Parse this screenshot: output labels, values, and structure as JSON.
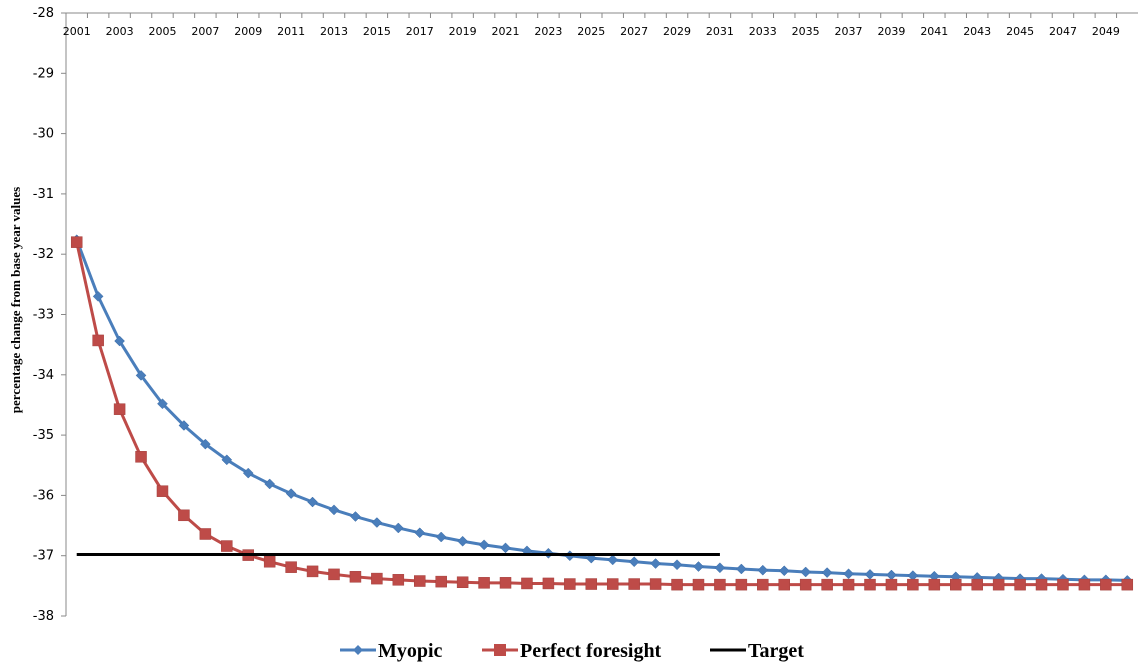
{
  "chart_data": {
    "type": "line",
    "title": "",
    "xlabel": "",
    "ylabel": "percentage change from base year values",
    "xlim": [
      2001,
      2050
    ],
    "ylim": [
      -38,
      -28
    ],
    "y_ticks": [
      -28,
      -29,
      -30,
      -31,
      -32,
      -33,
      -34,
      -35,
      -36,
      -37,
      -38
    ],
    "x_ticks": [
      2001,
      2003,
      2005,
      2007,
      2009,
      2011,
      2013,
      2015,
      2017,
      2019,
      2021,
      2023,
      2025,
      2027,
      2029,
      2031,
      2033,
      2035,
      2037,
      2039,
      2041,
      2043,
      2045,
      2047,
      2049
    ],
    "x_axis_position": "top",
    "grid": false,
    "legend_position": "bottom",
    "x": [
      2001,
      2002,
      2003,
      2004,
      2005,
      2006,
      2007,
      2008,
      2009,
      2010,
      2011,
      2012,
      2013,
      2014,
      2015,
      2016,
      2017,
      2018,
      2019,
      2020,
      2021,
      2022,
      2023,
      2024,
      2025,
      2026,
      2027,
      2028,
      2029,
      2030,
      2031,
      2032,
      2033,
      2034,
      2035,
      2036,
      2037,
      2038,
      2039,
      2040,
      2041,
      2042,
      2043,
      2044,
      2045,
      2046,
      2047,
      2048,
      2049,
      2050
    ],
    "series": [
      {
        "name": "Myopic",
        "color": "#4a7ebb",
        "marker": "diamond",
        "values": [
          -31.76,
          -32.7,
          -33.44,
          -34.01,
          -34.48,
          -34.84,
          -35.15,
          -35.41,
          -35.63,
          -35.81,
          -35.97,
          -36.11,
          -36.24,
          -36.35,
          -36.45,
          -36.54,
          -36.62,
          -36.69,
          -36.76,
          -36.82,
          -36.87,
          -36.92,
          -36.96,
          -37.0,
          -37.04,
          -37.07,
          -37.1,
          -37.13,
          -37.15,
          -37.18,
          -37.2,
          -37.22,
          -37.24,
          -37.25,
          -37.27,
          -37.28,
          -37.3,
          -37.31,
          -37.32,
          -37.33,
          -37.34,
          -37.35,
          -37.36,
          -37.37,
          -37.38,
          -37.38,
          -37.39,
          -37.4,
          -37.4,
          -37.41
        ]
      },
      {
        "name": "Perfect foresight",
        "color": "#be4b48",
        "marker": "square",
        "values": [
          -31.8,
          -33.43,
          -34.57,
          -35.36,
          -35.93,
          -36.33,
          -36.64,
          -36.84,
          -36.99,
          -37.1,
          -37.19,
          -37.26,
          -37.31,
          -37.35,
          -37.38,
          -37.4,
          -37.42,
          -37.43,
          -37.44,
          -37.45,
          -37.45,
          -37.46,
          -37.46,
          -37.47,
          -37.47,
          -37.47,
          -37.47,
          -37.47,
          -37.48,
          -37.48,
          -37.48,
          -37.48,
          -37.48,
          -37.48,
          -37.48,
          -37.48,
          -37.48,
          -37.48,
          -37.48,
          -37.48,
          -37.48,
          -37.48,
          -37.48,
          -37.48,
          -37.48,
          -37.48,
          -37.48,
          -37.48,
          -37.48,
          -37.48
        ]
      },
      {
        "name": "Target",
        "color": "#000000",
        "marker": "none",
        "x": [
          2001,
          2031
        ],
        "values": [
          -36.98,
          -36.98
        ]
      }
    ]
  }
}
